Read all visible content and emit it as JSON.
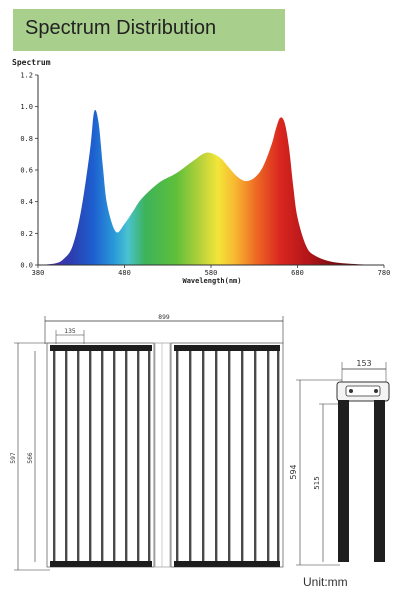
{
  "header": {
    "title": "Spectrum Distribution"
  },
  "chart_data": {
    "type": "area",
    "ylabel": "Spectrum",
    "xlabel": "Wavelength(nm)",
    "xlim": [
      380,
      780
    ],
    "ylim": [
      0,
      1.2
    ],
    "x_ticks": [
      380,
      480,
      580,
      680,
      780
    ],
    "y_ticks": [
      0.0,
      0.2,
      0.4,
      0.6,
      0.8,
      1.0,
      1.2
    ],
    "x_tick_labels": [
      "380",
      "480",
      "580",
      "680",
      "780"
    ],
    "y_tick_labels": [
      "0.0",
      "0.2",
      "0.4",
      "0.6",
      "0.8",
      "1.0",
      "1.2"
    ],
    "grid": false,
    "series": [
      {
        "x": [
          380,
          400,
          410,
          420,
          430,
          440,
          445,
          450,
          455,
          460,
          470,
          480,
          490,
          500,
          520,
          540,
          560,
          575,
          590,
          600,
          610,
          620,
          630,
          640,
          650,
          655,
          660,
          665,
          670,
          675,
          680,
          690,
          700,
          720,
          750,
          780
        ],
        "y": [
          0.0,
          0.01,
          0.04,
          0.12,
          0.35,
          0.72,
          0.97,
          0.9,
          0.62,
          0.38,
          0.21,
          0.26,
          0.34,
          0.42,
          0.52,
          0.58,
          0.66,
          0.71,
          0.68,
          0.62,
          0.56,
          0.53,
          0.55,
          0.62,
          0.76,
          0.86,
          0.93,
          0.9,
          0.75,
          0.5,
          0.3,
          0.12,
          0.06,
          0.02,
          0.005,
          0.0
        ]
      }
    ]
  },
  "dimensions": {
    "total_width": "899",
    "spacing": "135",
    "total_height": "597",
    "inner_height": "566",
    "profile_width": "153",
    "profile_height": "594",
    "profile_inner": "515",
    "unit_label": "Unit:mm"
  }
}
